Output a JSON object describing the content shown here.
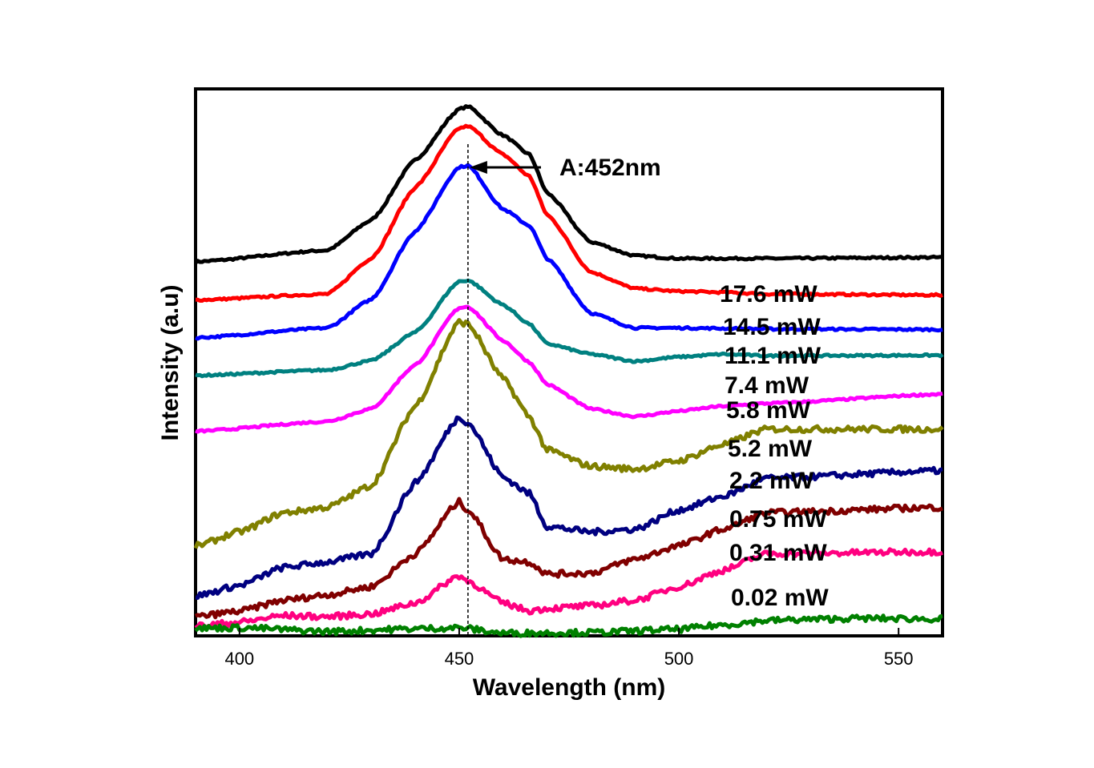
{
  "chart_data": {
    "type": "line",
    "xlabel": "Wavelength (nm)",
    "ylabel": "Intensity (a.u)",
    "xlim": [
      390,
      560
    ],
    "ylim": [
      0,
      100
    ],
    "xticks": [
      "400",
      "450",
      "500",
      "550"
    ],
    "y_tick_labels": false,
    "grid": false,
    "legend": "inline labels at right",
    "annotation": {
      "text": "A:452nm",
      "x": 452
    },
    "series": [
      {
        "name": "17.6 mW",
        "color": "#000000",
        "x": [
          390,
          420,
          430,
          440,
          450,
          452,
          460,
          466,
          470,
          480,
          490,
          500,
          510,
          520,
          560
        ],
        "values": [
          68.4,
          70.5,
          76,
          87,
          96.3,
          96.8,
          91.5,
          88,
          81,
          72,
          69.5,
          69,
          69,
          69,
          69.2
        ]
      },
      {
        "name": "14.5 mW",
        "color": "#ff0000",
        "x": [
          390,
          420,
          430,
          440,
          450,
          452,
          460,
          466,
          470,
          480,
          490,
          500,
          510,
          520,
          560
        ],
        "values": [
          61.4,
          62.5,
          69,
          82,
          92.8,
          93.2,
          88,
          84,
          77,
          66.5,
          63.5,
          63,
          62.8,
          62.5,
          62.3
        ]
      },
      {
        "name": "11.1 mW",
        "color": "#0000ff",
        "x": [
          390,
          420,
          430,
          440,
          450,
          452,
          460,
          466,
          470,
          480,
          490,
          500,
          510,
          520,
          560
        ],
        "values": [
          54.5,
          56.3,
          61.5,
          74,
          85.7,
          86,
          78,
          75,
          69,
          59,
          56.3,
          56.3,
          56.2,
          56.1,
          56
        ]
      },
      {
        "name": "7.4 mW",
        "color": "#008080",
        "x": [
          390,
          420,
          430,
          440,
          450,
          452,
          460,
          466,
          470,
          480,
          490,
          500,
          510,
          520,
          560
        ],
        "values": [
          47.6,
          48.6,
          50.3,
          55.5,
          64.8,
          65,
          60.5,
          57,
          53.4,
          51.5,
          50.2,
          51,
          51.5,
          51.2,
          51.3
        ]
      },
      {
        "name": "5.8 mW",
        "color": "#ff00ff",
        "x": [
          390,
          420,
          430,
          440,
          450,
          452,
          460,
          466,
          470,
          480,
          490,
          500,
          510,
          520,
          560
        ],
        "values": [
          37.4,
          39.2,
          41.5,
          49.5,
          60,
          60.2,
          54,
          50,
          46,
          41.5,
          40.1,
          41.1,
          42,
          42.5,
          44.2
        ]
      },
      {
        "name": "5.2 mW",
        "color": "#808000",
        "x": [
          390,
          400,
          410,
          420,
          430,
          440,
          450,
          452,
          460,
          466,
          470,
          480,
          490,
          500,
          510,
          520,
          560
        ],
        "values": [
          16.4,
          19,
          22.5,
          23.5,
          27.5,
          42,
          57.4,
          57,
          47,
          40,
          34,
          31,
          30.5,
          32,
          35,
          37.8,
          37.8
        ]
      },
      {
        "name": "2.2 mW",
        "color": "#000080",
        "x": [
          390,
          400,
          410,
          420,
          430,
          440,
          450,
          452,
          460,
          466,
          470,
          480,
          490,
          500,
          510,
          520,
          560
        ],
        "values": [
          7.3,
          9.2,
          12.5,
          13.5,
          15,
          28,
          40,
          39,
          29,
          26,
          20,
          19,
          19.5,
          23,
          25.5,
          28.8,
          30.2
        ]
      },
      {
        "name": "0.75 mW",
        "color": "#800000",
        "x": [
          390,
          400,
          410,
          420,
          430,
          440,
          450,
          452,
          460,
          466,
          470,
          480,
          490,
          500,
          510,
          520,
          560
        ],
        "values": [
          3.5,
          4.5,
          6.5,
          7.5,
          9,
          15,
          24.5,
          23,
          14,
          13.5,
          11.3,
          11.5,
          14,
          16.5,
          19.5,
          22.5,
          23.5
        ]
      },
      {
        "name": "0.31 mW",
        "color": "#ff0080",
        "x": [
          390,
          400,
          410,
          420,
          430,
          440,
          450,
          452,
          460,
          466,
          470,
          480,
          490,
          500,
          510,
          520,
          560
        ],
        "values": [
          1.8,
          2.5,
          3.7,
          3.5,
          4,
          6,
          11,
          10,
          6,
          4.6,
          5,
          5.5,
          6.5,
          9,
          12,
          15,
          15.4
        ]
      },
      {
        "name": "0.02 mW",
        "color": "#008000",
        "x": [
          390,
          400,
          420,
          440,
          450,
          460,
          480,
          500,
          510,
          520,
          530,
          540,
          560
        ],
        "values": [
          1.4,
          1.5,
          0.8,
          1.3,
          1.5,
          0.5,
          0.6,
          1.2,
          2,
          2.8,
          3,
          3.2,
          3.1
        ]
      }
    ]
  }
}
